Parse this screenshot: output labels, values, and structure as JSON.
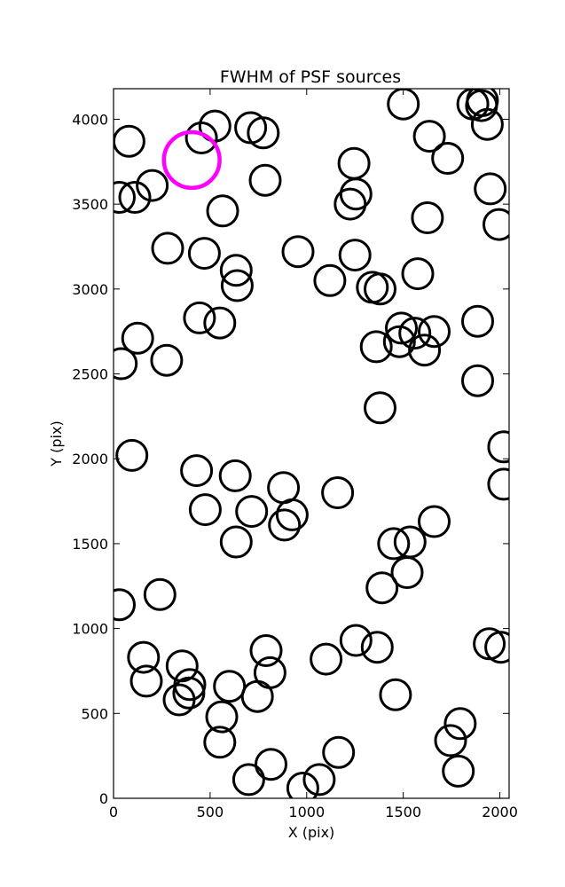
{
  "chart_data": {
    "type": "scatter",
    "title": "FWHM of PSF sources",
    "xlabel": "X (pix)",
    "ylabel": "Y (pix)",
    "xlim": [
      0,
      2048
    ],
    "ylim": [
      0,
      4180
    ],
    "xticks": [
      0,
      500,
      1000,
      1500,
      2000
    ],
    "yticks": [
      0,
      500,
      1000,
      1500,
      2000,
      2500,
      3000,
      3500,
      4000
    ],
    "marker": "open-circle",
    "marker_color": "#000000",
    "highlight_color": "#ff00ff",
    "marker_radius_pix": 78,
    "highlight_radius_pix": 144,
    "grid": false,
    "highlight": {
      "x": 405,
      "y": 3760
    },
    "points": [
      [
        80,
        3870
      ],
      [
        30,
        3540
      ],
      [
        110,
        3540
      ],
      [
        200,
        3610
      ],
      [
        455,
        3890
      ],
      [
        525,
        3960
      ],
      [
        710,
        3950
      ],
      [
        775,
        3920
      ],
      [
        785,
        3640
      ],
      [
        565,
        3460
      ],
      [
        280,
        3240
      ],
      [
        470,
        3210
      ],
      [
        635,
        3110
      ],
      [
        640,
        3020
      ],
      [
        445,
        2830
      ],
      [
        550,
        2800
      ],
      [
        125,
        2710
      ],
      [
        40,
        2560
      ],
      [
        275,
        2580
      ],
      [
        955,
        3220
      ],
      [
        1120,
        3050
      ],
      [
        1245,
        3740
      ],
      [
        1255,
        3560
      ],
      [
        1225,
        3500
      ],
      [
        1250,
        3200
      ],
      [
        1340,
        3010
      ],
      [
        1380,
        3000
      ],
      [
        1360,
        2660
      ],
      [
        1480,
        2690
      ],
      [
        1490,
        2770
      ],
      [
        1560,
        2740
      ],
      [
        1660,
        2750
      ],
      [
        1610,
        2640
      ],
      [
        1575,
        3090
      ],
      [
        1625,
        3420
      ],
      [
        1635,
        3900
      ],
      [
        1730,
        3770
      ],
      [
        1500,
        4090
      ],
      [
        1860,
        4090
      ],
      [
        1910,
        4110
      ],
      [
        1905,
        4080
      ],
      [
        1935,
        3970
      ],
      [
        1950,
        3590
      ],
      [
        1995,
        3380
      ],
      [
        1885,
        2810
      ],
      [
        1885,
        2460
      ],
      [
        1380,
        2300
      ],
      [
        2020,
        2070
      ],
      [
        2020,
        1850
      ],
      [
        95,
        2020
      ],
      [
        430,
        1930
      ],
      [
        630,
        1900
      ],
      [
        475,
        1700
      ],
      [
        715,
        1690
      ],
      [
        880,
        1830
      ],
      [
        925,
        1670
      ],
      [
        885,
        1610
      ],
      [
        635,
        1510
      ],
      [
        1160,
        1800
      ],
      [
        1450,
        1500
      ],
      [
        1535,
        1510
      ],
      [
        1660,
        1630
      ],
      [
        1520,
        1330
      ],
      [
        1390,
        1240
      ],
      [
        30,
        1140
      ],
      [
        240,
        1200
      ],
      [
        155,
        830
      ],
      [
        170,
        690
      ],
      [
        355,
        780
      ],
      [
        395,
        670
      ],
      [
        390,
        620
      ],
      [
        340,
        580
      ],
      [
        600,
        660
      ],
      [
        560,
        480
      ],
      [
        550,
        330
      ],
      [
        745,
        600
      ],
      [
        790,
        870
      ],
      [
        810,
        740
      ],
      [
        700,
        110
      ],
      [
        815,
        200
      ],
      [
        980,
        60
      ],
      [
        1065,
        110
      ],
      [
        1165,
        270
      ],
      [
        1100,
        820
      ],
      [
        1255,
        930
      ],
      [
        1365,
        890
      ],
      [
        1460,
        610
      ],
      [
        1745,
        340
      ],
      [
        1795,
        440
      ],
      [
        1785,
        160
      ],
      [
        1945,
        910
      ],
      [
        2005,
        890
      ]
    ]
  }
}
